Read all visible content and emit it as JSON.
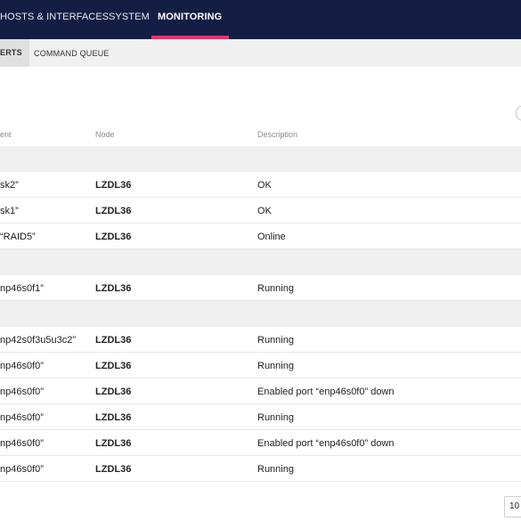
{
  "topnav": {
    "tabs": [
      {
        "label": "HOSTS & INTERFACES"
      },
      {
        "label": "SYSTEM"
      },
      {
        "label": "MONITORING",
        "active": true
      }
    ],
    "accent_color": "#e8356e",
    "background_color": "#141d44"
  },
  "subnav": {
    "tabs": [
      {
        "label": "ERTS",
        "active": true
      },
      {
        "label": "COMMAND QUEUE"
      }
    ]
  },
  "table": {
    "headers": {
      "event": "ent",
      "node": "Node",
      "description": "Description"
    },
    "rows": [
      {
        "type": "group"
      },
      {
        "type": "data",
        "event": "sk2”",
        "node": "LZDL36",
        "description": "OK"
      },
      {
        "type": "data",
        "event": "sk1”",
        "node": "LZDL36",
        "description": "OK"
      },
      {
        "type": "data",
        "event": "“RAID5”",
        "node": "LZDL36",
        "description": "Online"
      },
      {
        "type": "group"
      },
      {
        "type": "data",
        "event": "np46s0f1”",
        "node": "LZDL36",
        "description": "Running"
      },
      {
        "type": "group"
      },
      {
        "type": "data",
        "event": "np42s0f3u5u3c2”",
        "node": "LZDL36",
        "description": "Running"
      },
      {
        "type": "data",
        "event": "np46s0f0”",
        "node": "LZDL36",
        "description": "Running"
      },
      {
        "type": "data",
        "event": "np46s0f0”",
        "node": "LZDL36",
        "description": "Enabled port “enp46s0f0” down"
      },
      {
        "type": "data",
        "event": "np46s0f0”",
        "node": "LZDL36",
        "description": "Running"
      },
      {
        "type": "data",
        "event": "np46s0f0”",
        "node": "LZDL36",
        "description": "Enabled port “enp46s0f0” down"
      },
      {
        "type": "data",
        "event": "np46s0f0”",
        "node": "LZDL36",
        "description": "Running"
      }
    ]
  },
  "pagination": {
    "page_size_value": "10"
  }
}
